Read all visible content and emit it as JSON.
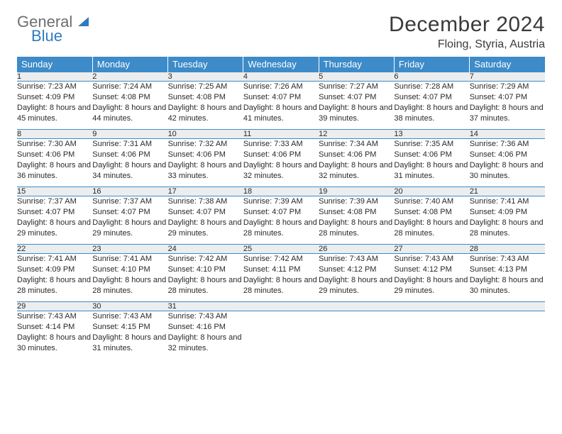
{
  "brand": {
    "line1": "General",
    "line2": "Blue"
  },
  "title": "December 2024",
  "location": "Floing, Styria, Austria",
  "colors": {
    "header_bg": "#3d8bc8",
    "header_text": "#ffffff",
    "daynum_bg": "#ecedee",
    "rule": "#3d8bc8",
    "brand_gray": "#6e6e6e",
    "brand_blue": "#2f7bbf",
    "text": "#2a2a2a"
  },
  "weekdays": [
    "Sunday",
    "Monday",
    "Tuesday",
    "Wednesday",
    "Thursday",
    "Friday",
    "Saturday"
  ],
  "days": [
    {
      "n": "1",
      "sr": "7:23 AM",
      "ss": "4:09 PM",
      "dl": "8 hours and 45 minutes."
    },
    {
      "n": "2",
      "sr": "7:24 AM",
      "ss": "4:08 PM",
      "dl": "8 hours and 44 minutes."
    },
    {
      "n": "3",
      "sr": "7:25 AM",
      "ss": "4:08 PM",
      "dl": "8 hours and 42 minutes."
    },
    {
      "n": "4",
      "sr": "7:26 AM",
      "ss": "4:07 PM",
      "dl": "8 hours and 41 minutes."
    },
    {
      "n": "5",
      "sr": "7:27 AM",
      "ss": "4:07 PM",
      "dl": "8 hours and 39 minutes."
    },
    {
      "n": "6",
      "sr": "7:28 AM",
      "ss": "4:07 PM",
      "dl": "8 hours and 38 minutes."
    },
    {
      "n": "7",
      "sr": "7:29 AM",
      "ss": "4:07 PM",
      "dl": "8 hours and 37 minutes."
    },
    {
      "n": "8",
      "sr": "7:30 AM",
      "ss": "4:06 PM",
      "dl": "8 hours and 36 minutes."
    },
    {
      "n": "9",
      "sr": "7:31 AM",
      "ss": "4:06 PM",
      "dl": "8 hours and 34 minutes."
    },
    {
      "n": "10",
      "sr": "7:32 AM",
      "ss": "4:06 PM",
      "dl": "8 hours and 33 minutes."
    },
    {
      "n": "11",
      "sr": "7:33 AM",
      "ss": "4:06 PM",
      "dl": "8 hours and 32 minutes."
    },
    {
      "n": "12",
      "sr": "7:34 AM",
      "ss": "4:06 PM",
      "dl": "8 hours and 32 minutes."
    },
    {
      "n": "13",
      "sr": "7:35 AM",
      "ss": "4:06 PM",
      "dl": "8 hours and 31 minutes."
    },
    {
      "n": "14",
      "sr": "7:36 AM",
      "ss": "4:06 PM",
      "dl": "8 hours and 30 minutes."
    },
    {
      "n": "15",
      "sr": "7:37 AM",
      "ss": "4:07 PM",
      "dl": "8 hours and 29 minutes."
    },
    {
      "n": "16",
      "sr": "7:37 AM",
      "ss": "4:07 PM",
      "dl": "8 hours and 29 minutes."
    },
    {
      "n": "17",
      "sr": "7:38 AM",
      "ss": "4:07 PM",
      "dl": "8 hours and 29 minutes."
    },
    {
      "n": "18",
      "sr": "7:39 AM",
      "ss": "4:07 PM",
      "dl": "8 hours and 28 minutes."
    },
    {
      "n": "19",
      "sr": "7:39 AM",
      "ss": "4:08 PM",
      "dl": "8 hours and 28 minutes."
    },
    {
      "n": "20",
      "sr": "7:40 AM",
      "ss": "4:08 PM",
      "dl": "8 hours and 28 minutes."
    },
    {
      "n": "21",
      "sr": "7:41 AM",
      "ss": "4:09 PM",
      "dl": "8 hours and 28 minutes."
    },
    {
      "n": "22",
      "sr": "7:41 AM",
      "ss": "4:09 PM",
      "dl": "8 hours and 28 minutes."
    },
    {
      "n": "23",
      "sr": "7:41 AM",
      "ss": "4:10 PM",
      "dl": "8 hours and 28 minutes."
    },
    {
      "n": "24",
      "sr": "7:42 AM",
      "ss": "4:10 PM",
      "dl": "8 hours and 28 minutes."
    },
    {
      "n": "25",
      "sr": "7:42 AM",
      "ss": "4:11 PM",
      "dl": "8 hours and 28 minutes."
    },
    {
      "n": "26",
      "sr": "7:43 AM",
      "ss": "4:12 PM",
      "dl": "8 hours and 29 minutes."
    },
    {
      "n": "27",
      "sr": "7:43 AM",
      "ss": "4:12 PM",
      "dl": "8 hours and 29 minutes."
    },
    {
      "n": "28",
      "sr": "7:43 AM",
      "ss": "4:13 PM",
      "dl": "8 hours and 30 minutes."
    },
    {
      "n": "29",
      "sr": "7:43 AM",
      "ss": "4:14 PM",
      "dl": "8 hours and 30 minutes."
    },
    {
      "n": "30",
      "sr": "7:43 AM",
      "ss": "4:15 PM",
      "dl": "8 hours and 31 minutes."
    },
    {
      "n": "31",
      "sr": "7:43 AM",
      "ss": "4:16 PM",
      "dl": "8 hours and 32 minutes."
    }
  ],
  "labels": {
    "sunrise": "Sunrise:",
    "sunset": "Sunset:",
    "daylight": "Daylight:"
  }
}
